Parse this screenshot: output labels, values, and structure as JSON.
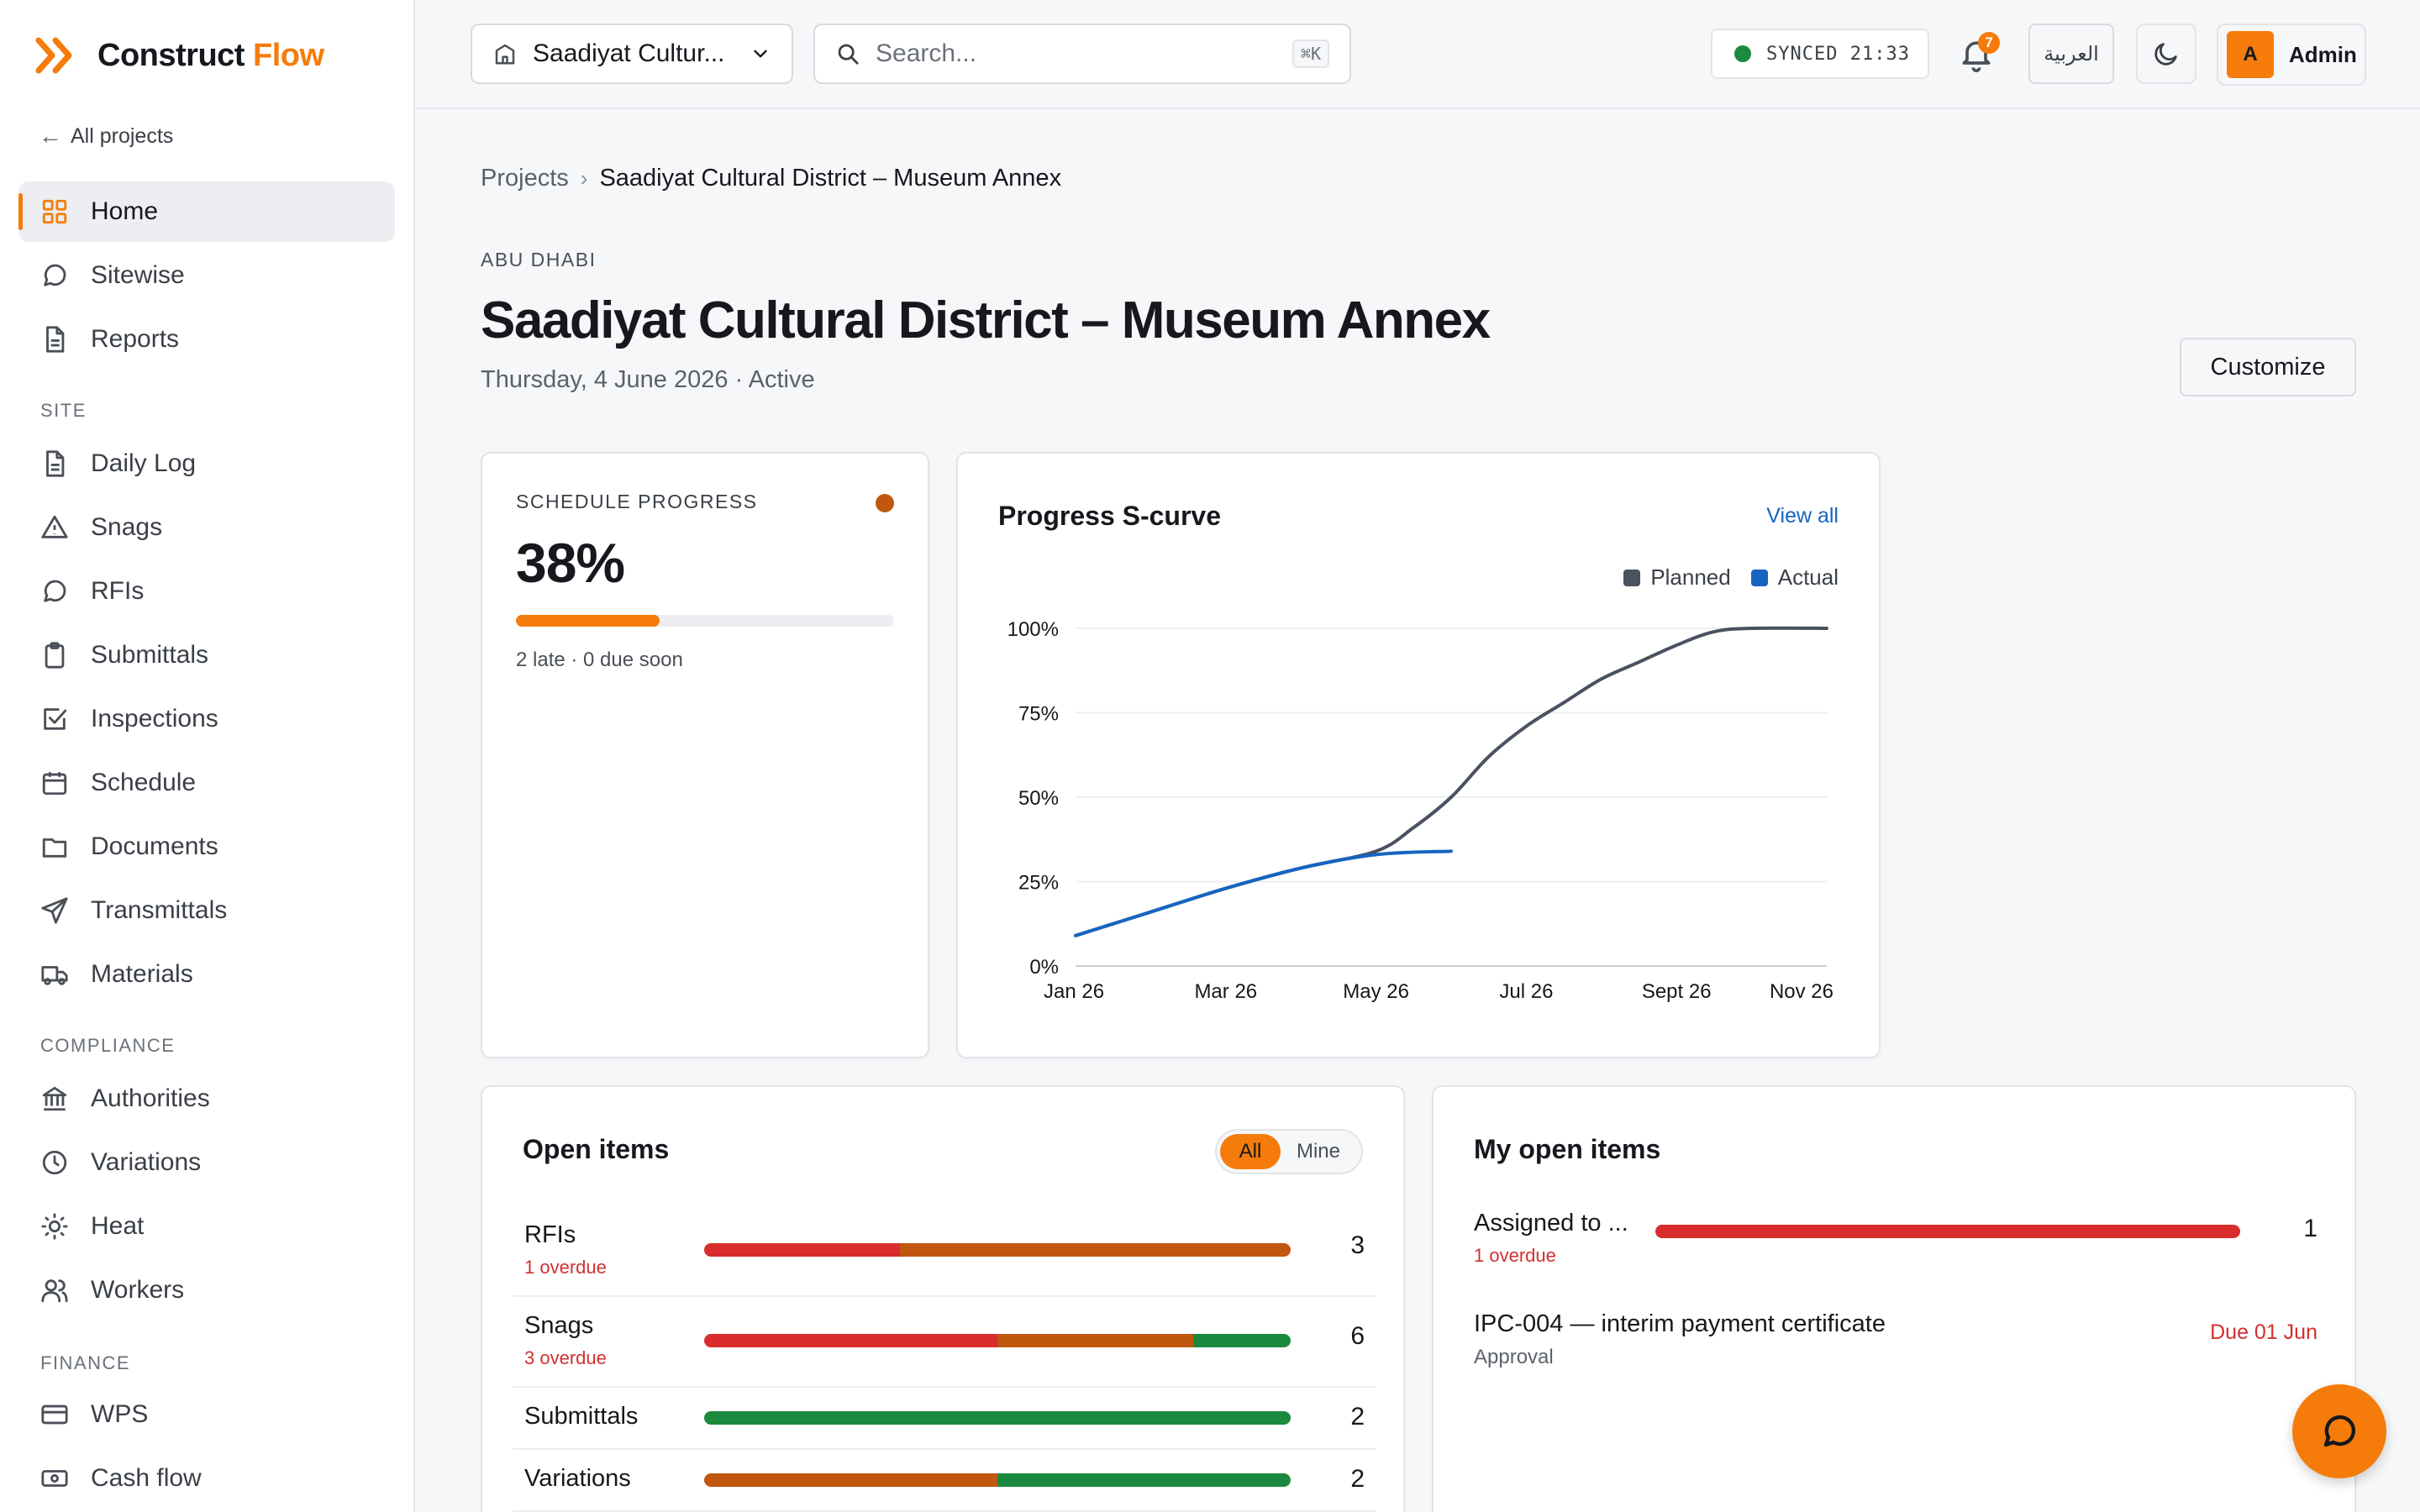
{
  "brand": {
    "name_part1": "Construct",
    "name_part2": "Flow",
    "accent": "#f57c0a"
  },
  "sidebar": {
    "back_label": "All projects",
    "items_main": [
      {
        "label": "Home",
        "icon": "grid-icon",
        "active": true
      },
      {
        "label": "Sitewise",
        "icon": "chat-bubble-icon"
      },
      {
        "label": "Reports",
        "icon": "file-text-icon"
      }
    ],
    "section_site": "SITE",
    "items_site": [
      {
        "label": "Daily Log",
        "icon": "file-text-icon"
      },
      {
        "label": "Snags",
        "icon": "warning-triangle-icon"
      },
      {
        "label": "RFIs",
        "icon": "chat-bubble-icon"
      },
      {
        "label": "Submittals",
        "icon": "clipboard-icon"
      },
      {
        "label": "Inspections",
        "icon": "check-square-icon"
      },
      {
        "label": "Schedule",
        "icon": "calendar-icon"
      },
      {
        "label": "Documents",
        "icon": "folder-icon"
      },
      {
        "label": "Transmittals",
        "icon": "send-icon"
      },
      {
        "label": "Materials",
        "icon": "truck-icon"
      }
    ],
    "section_compliance": "COMPLIANCE",
    "items_compliance": [
      {
        "label": "Authorities",
        "icon": "landmark-icon"
      },
      {
        "label": "Variations",
        "icon": "clock-icon"
      },
      {
        "label": "Heat",
        "icon": "sun-icon"
      },
      {
        "label": "Workers",
        "icon": "users-icon"
      }
    ],
    "section_finance": "FINANCE",
    "items_finance": [
      {
        "label": "WPS",
        "icon": "card-icon"
      },
      {
        "label": "Cash flow",
        "icon": "cash-icon"
      }
    ]
  },
  "header": {
    "project_select": "Saadiyat Cultur...",
    "search_placeholder": "Search...",
    "search_shortcut": "⌘K",
    "sync_status": "SYNCED 21:33",
    "notification_count": "7",
    "language_label": "العربية",
    "user_initial": "A",
    "user_name": "Admin"
  },
  "page": {
    "breadcrumb_root": "Projects",
    "breadcrumb_current": "Saadiyat Cultural District – Museum Annex",
    "location": "ABU DHABI",
    "title": "Saadiyat Cultural District – Museum Annex",
    "subline": "Thursday, 4 June 2026 · Active",
    "customize_label": "Customize"
  },
  "schedule_progress": {
    "label": "SCHEDULE PROGRESS",
    "percent_text": "38%",
    "percent": 38,
    "note": "2 late · 0 due soon",
    "status_color": "#c1570f"
  },
  "scurve": {
    "title": "Progress S-curve",
    "view_all": "View all"
  },
  "chart_data": {
    "type": "line",
    "title": "Progress S-curve",
    "x_ticks": [
      "Jan 26",
      "Mar 26",
      "May 26",
      "Jul 26",
      "Sept 26",
      "Nov 26"
    ],
    "y_ticks": [
      "0%",
      "25%",
      "50%",
      "75%",
      "100%"
    ],
    "ylim": [
      0,
      100
    ],
    "xlim_months": [
      0,
      10
    ],
    "grid": true,
    "legend_position": "top-right",
    "series": [
      {
        "name": "Planned",
        "color": "#4a5160",
        "points": [
          [
            0,
            9
          ],
          [
            1,
            16
          ],
          [
            2,
            23
          ],
          [
            3,
            29
          ],
          [
            4,
            34
          ],
          [
            4.5,
            41
          ],
          [
            5,
            50
          ],
          [
            5.5,
            62
          ],
          [
            6,
            71
          ],
          [
            6.5,
            78
          ],
          [
            7,
            85
          ],
          [
            7.5,
            90
          ],
          [
            8,
            95
          ],
          [
            8.5,
            99
          ],
          [
            9,
            100
          ],
          [
            10,
            100
          ]
        ]
      },
      {
        "name": "Actual",
        "color": "#1565c0",
        "points": [
          [
            0,
            9
          ],
          [
            1,
            16
          ],
          [
            2,
            23
          ],
          [
            3,
            29
          ],
          [
            4,
            33
          ],
          [
            5,
            34
          ]
        ]
      }
    ]
  },
  "open_items": {
    "title": "Open items",
    "filter_all": "All",
    "filter_mine": "Mine",
    "rows": [
      {
        "name": "RFIs",
        "overdue": "1 overdue",
        "count": "3",
        "segments": [
          {
            "value": 1,
            "color": "#d92d2d"
          },
          {
            "value": 2,
            "color": "#c1570f"
          }
        ]
      },
      {
        "name": "Snags",
        "overdue": "3 overdue",
        "count": "6",
        "segments": [
          {
            "value": 3,
            "color": "#d92d2d"
          },
          {
            "value": 2,
            "color": "#c1570f"
          },
          {
            "value": 1,
            "color": "#1b8a3f"
          }
        ]
      },
      {
        "name": "Submittals",
        "overdue": "",
        "count": "2",
        "segments": [
          {
            "value": 2,
            "color": "#1b8a3f"
          }
        ]
      },
      {
        "name": "Variations",
        "overdue": "",
        "count": "2",
        "segments": [
          {
            "value": 1,
            "color": "#c1570f"
          },
          {
            "value": 1,
            "color": "#1b8a3f"
          }
        ]
      }
    ]
  },
  "my_open_items": {
    "title": "My open items",
    "assigned": {
      "name": "Assigned to ...",
      "overdue": "1 overdue",
      "count": "1"
    },
    "item": {
      "name": "IPC-004 — interim payment certificate",
      "type": "Approval",
      "due": "Due 01 Jun"
    }
  }
}
